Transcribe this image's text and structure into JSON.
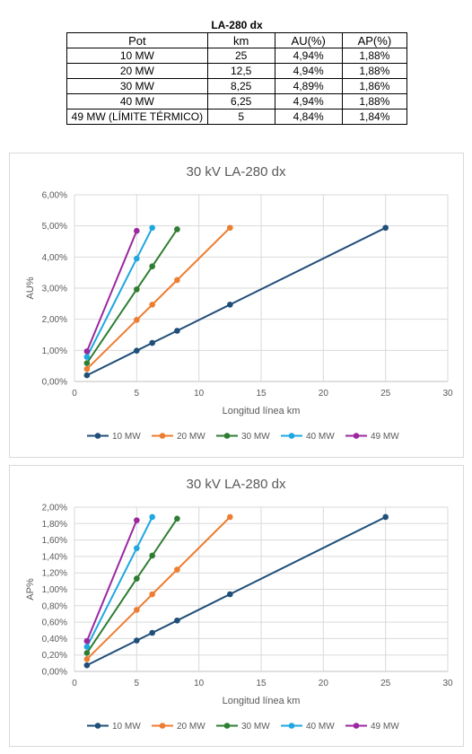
{
  "table": {
    "title": "LA-280 dx",
    "headers": [
      "Pot",
      "km",
      "AU(%)",
      "AP(%)"
    ],
    "rows": [
      [
        "10 MW",
        "25",
        "4,94%",
        "1,88%"
      ],
      [
        "20 MW",
        "12,5",
        "4,94%",
        "1,88%"
      ],
      [
        "30 MW",
        "8,25",
        "4,89%",
        "1,86%"
      ],
      [
        "40 MW",
        "6,25",
        "4,94%",
        "1,88%"
      ],
      [
        "49 MW (LÍMITE TÉRMICO)",
        "5",
        "4,84%",
        "1,84%"
      ]
    ]
  },
  "colors": {
    "10 MW": "#1f4e79",
    "20 MW": "#ed7d31",
    "30 MW": "#2e7d32",
    "40 MW": "#1ea7e1",
    "49 MW": "#9c27a0"
  },
  "chart_data": [
    {
      "type": "line",
      "title": "30 kV LA-280 dx",
      "xlabel": "Longitud línea km",
      "ylabel": "AU%",
      "xlim": [
        0,
        30
      ],
      "ylim": [
        0,
        0.06
      ],
      "xticks": [
        "0",
        "5",
        "10",
        "15",
        "20",
        "25",
        "30"
      ],
      "yticks": [
        "0,00%",
        "1,00%",
        "2,00%",
        "3,00%",
        "4,00%",
        "5,00%",
        "6,00%"
      ],
      "grid": true,
      "legend": "bottom",
      "series": [
        {
          "name": "10 MW",
          "x": [
            1,
            5,
            6.25,
            8.25,
            12.5,
            25
          ],
          "y": [
            0.002,
            0.0099,
            0.0124,
            0.0163,
            0.0247,
            0.0494
          ]
        },
        {
          "name": "20 MW",
          "x": [
            1,
            5,
            6.25,
            8.25,
            12.5
          ],
          "y": [
            0.004,
            0.0198,
            0.0247,
            0.0326,
            0.0494
          ]
        },
        {
          "name": "30 MW",
          "x": [
            1,
            5,
            6.25,
            8.25
          ],
          "y": [
            0.0059,
            0.0296,
            0.037,
            0.0489
          ]
        },
        {
          "name": "40 MW",
          "x": [
            1,
            5,
            6.25
          ],
          "y": [
            0.0079,
            0.0395,
            0.0494
          ]
        },
        {
          "name": "49 MW",
          "x": [
            1,
            5
          ],
          "y": [
            0.0097,
            0.0484
          ]
        }
      ]
    },
    {
      "type": "line",
      "title": "30 kV LA-280 dx",
      "xlabel": "Longitud línea km",
      "ylabel": "AP%",
      "xlim": [
        0,
        30
      ],
      "ylim": [
        0,
        0.02
      ],
      "xticks": [
        "0",
        "5",
        "10",
        "15",
        "20",
        "25",
        "30"
      ],
      "yticks": [
        "0,00%",
        "0,20%",
        "0,40%",
        "0,60%",
        "0,80%",
        "1,00%",
        "1,20%",
        "1,40%",
        "1,60%",
        "1,80%",
        "2,00%"
      ],
      "grid": true,
      "legend": "bottom",
      "series": [
        {
          "name": "10 MW",
          "x": [
            1,
            5,
            6.25,
            8.25,
            12.5,
            25
          ],
          "y": [
            0.00075,
            0.00376,
            0.0047,
            0.0062,
            0.0094,
            0.0188
          ]
        },
        {
          "name": "20 MW",
          "x": [
            1,
            5,
            6.25,
            8.25,
            12.5
          ],
          "y": [
            0.0015,
            0.0075,
            0.0094,
            0.0124,
            0.0188
          ]
        },
        {
          "name": "30 MW",
          "x": [
            1,
            5,
            6.25,
            8.25
          ],
          "y": [
            0.00225,
            0.0113,
            0.0141,
            0.0186
          ]
        },
        {
          "name": "40 MW",
          "x": [
            1,
            5,
            6.25
          ],
          "y": [
            0.003,
            0.015,
            0.0188
          ]
        },
        {
          "name": "49 MW",
          "x": [
            1,
            5
          ],
          "y": [
            0.0037,
            0.0184
          ]
        }
      ]
    }
  ]
}
